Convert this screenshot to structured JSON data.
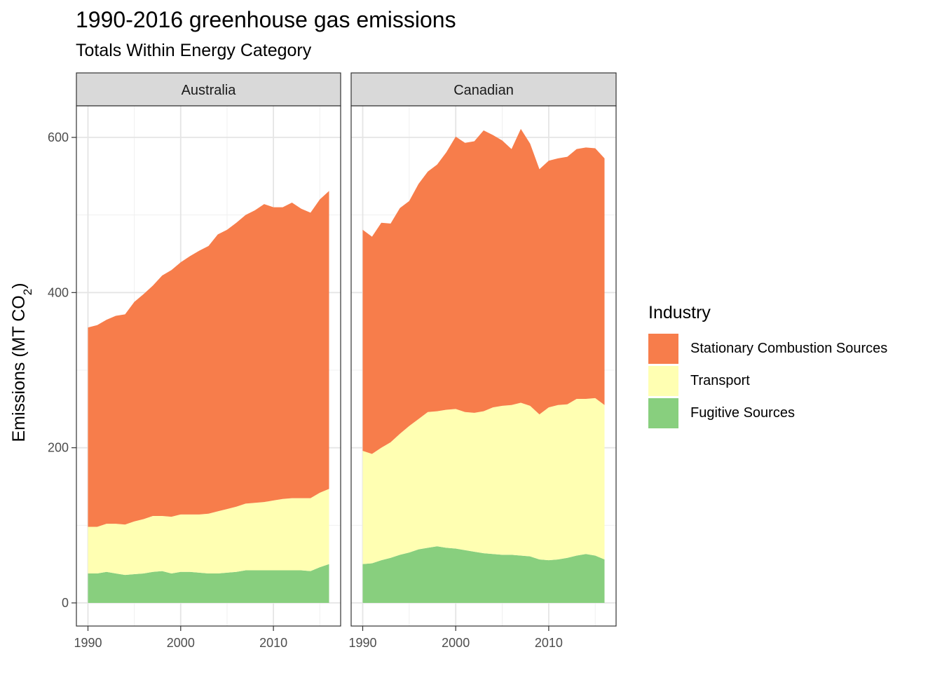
{
  "chart_data": {
    "type": "area",
    "stacked": true,
    "title": "1990-2016 greenhouse gas emissions",
    "subtitle": "Totals Within Energy Category",
    "ylabel": "Emissions (MT CO",
    "ylabel_subscript": "2",
    "ylabel_suffix": ")",
    "xlabel": "",
    "x": [
      1990,
      1991,
      1992,
      1993,
      1994,
      1995,
      1996,
      1997,
      1998,
      1999,
      2000,
      2001,
      2002,
      2003,
      2004,
      2005,
      2006,
      2007,
      2008,
      2009,
      2010,
      2011,
      2012,
      2013,
      2014,
      2015,
      2016
    ],
    "xlim": [
      1989,
      2017
    ],
    "ylim": [
      0,
      600
    ],
    "x_ticks": [
      1990,
      2000,
      2010
    ],
    "y_ticks": [
      0,
      200,
      400,
      600
    ],
    "legend_title": "Industry",
    "legend_position": "right",
    "grid": true,
    "facets": [
      {
        "name": "Australia",
        "series": [
          {
            "name": "Fugitive Sources",
            "color": "#88CF7E",
            "values": [
              38,
              38,
              40,
              38,
              36,
              37,
              38,
              40,
              41,
              38,
              40,
              40,
              39,
              38,
              38,
              39,
              40,
              42,
              42,
              42,
              42,
              42,
              42,
              42,
              41,
              46,
              50
            ]
          },
          {
            "name": "Transport",
            "color": "#FFFFB2",
            "values": [
              60,
              60,
              62,
              64,
              65,
              68,
              70,
              72,
              71,
              73,
              74,
              74,
              75,
              77,
              80,
              82,
              84,
              86,
              87,
              88,
              90,
              92,
              93,
              93,
              94,
              96,
              97
            ]
          },
          {
            "name": "Stationary Combustion Sources",
            "color": "#F77D4B",
            "values": [
              257,
              260,
              263,
              268,
              271,
              283,
              290,
              297,
              310,
              318,
              325,
              333,
              340,
              345,
              357,
              360,
              366,
              372,
              377,
              384,
              378,
              376,
              381,
              373,
              368,
              378,
              384
            ]
          }
        ]
      },
      {
        "name": "Canadian",
        "series": [
          {
            "name": "Fugitive Sources",
            "color": "#88CF7E",
            "values": [
              50,
              51,
              55,
              58,
              62,
              65,
              69,
              71,
              73,
              71,
              70,
              68,
              66,
              64,
              63,
              62,
              62,
              61,
              60,
              56,
              55,
              56,
              58,
              61,
              63,
              61,
              56
            ]
          },
          {
            "name": "Transport",
            "color": "#FFFFB2",
            "values": [
              146,
              141,
              145,
              149,
              156,
              163,
              168,
              175,
              174,
              178,
              180,
              178,
              179,
              183,
              189,
              192,
              193,
              197,
              194,
              187,
              197,
              199,
              198,
              202,
              200,
              203,
              199
            ]
          },
          {
            "name": "Stationary Combustion Sources",
            "color": "#F77D4B",
            "values": [
              285,
              280,
              290,
              282,
              291,
              290,
              303,
              310,
              318,
              332,
              351,
              347,
              350,
              362,
              351,
              342,
              330,
              353,
              338,
              316,
              318,
              318,
              319,
              322,
              324,
              322,
              318
            ]
          }
        ]
      }
    ],
    "legend": [
      {
        "name": "Stationary Combustion Sources",
        "color": "#F77D4B"
      },
      {
        "name": "Transport",
        "color": "#FFFFB2"
      },
      {
        "name": "Fugitive Sources",
        "color": "#88CF7E"
      }
    ]
  }
}
